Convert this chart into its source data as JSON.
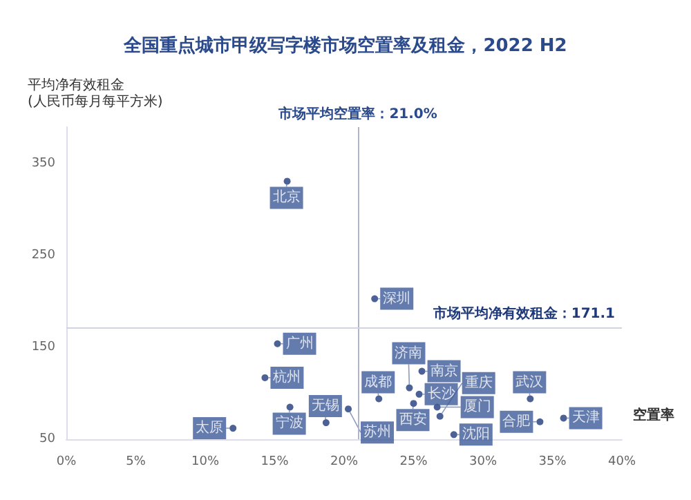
{
  "chart_data": {
    "type": "scatter",
    "title": "全国重点城市甲级写字楼市场空置率及租金，2022 H2",
    "xlabel": "空置率",
    "ylabel": "平均净有效租金\n(人民币每月每平方米)",
    "xlim": [
      0,
      40
    ],
    "xticks": [
      {
        "value": 0,
        "label": "0%"
      },
      {
        "value": 5,
        "label": "5%"
      },
      {
        "value": 10,
        "label": "10%"
      },
      {
        "value": 15,
        "label": "15%"
      },
      {
        "value": 20,
        "label": "20%"
      },
      {
        "value": 25,
        "label": "25%"
      },
      {
        "value": 30,
        "label": "30%"
      },
      {
        "value": 35,
        "label": "35%"
      },
      {
        "value": 40,
        "label": "40%"
      }
    ],
    "ylim": [
      50,
      390
    ],
    "yticks": [
      50,
      150,
      250,
      350
    ],
    "grid": false,
    "legend": false,
    "marker": "circle",
    "series": [
      {
        "name": "北京",
        "color": "#1f3a7a",
        "x": [
          15.9
        ],
        "values": [
          331
        ]
      },
      {
        "name": "深圳",
        "color": "#1f3a7a",
        "x": [
          22.2
        ],
        "values": [
          203
        ]
      },
      {
        "name": "广州",
        "color": "#1f3a7a",
        "x": [
          15.2
        ],
        "values": [
          154
        ]
      },
      {
        "name": "杭州",
        "color": "#1f3a7a",
        "x": [
          14.3
        ],
        "values": [
          117
        ]
      },
      {
        "name": "宁波",
        "color": "#1f3a7a",
        "x": [
          16.1
        ],
        "values": [
          85
        ]
      },
      {
        "name": "太原",
        "color": "#1f3a7a",
        "x": [
          12.0
        ],
        "values": [
          62
        ]
      },
      {
        "name": "无锡",
        "color": "#1f3a7a",
        "x": [
          18.7
        ],
        "values": [
          68
        ]
      },
      {
        "name": "苏州",
        "color": "#1f3a7a",
        "x": [
          20.3
        ],
        "values": [
          83
        ]
      },
      {
        "name": "成都",
        "color": "#1f3a7a",
        "x": [
          22.5
        ],
        "values": [
          94
        ]
      },
      {
        "name": "济南",
        "color": "#1f3a7a",
        "x": [
          24.7
        ],
        "values": [
          106
        ]
      },
      {
        "name": "南京",
        "color": "#1f3a7a",
        "x": [
          25.6
        ],
        "values": [
          124
        ]
      },
      {
        "name": "长沙",
        "color": "#1f3a7a",
        "x": [
          25.4
        ],
        "values": [
          99
        ]
      },
      {
        "name": "西安",
        "color": "#1f3a7a",
        "x": [
          25.0
        ],
        "values": [
          89
        ]
      },
      {
        "name": "厦门",
        "color": "#1f3a7a",
        "x": [
          26.7
        ],
        "values": [
          85
        ]
      },
      {
        "name": "重庆",
        "color": "#1f3a7a",
        "x": [
          26.9
        ],
        "values": [
          75
        ]
      },
      {
        "name": "沈阳",
        "color": "#1f3a7a",
        "x": [
          27.9
        ],
        "values": [
          55
        ]
      },
      {
        "name": "武汉",
        "color": "#1f3a7a",
        "x": [
          33.4
        ],
        "values": [
          94
        ]
      },
      {
        "name": "合肥",
        "color": "#1f3a7a",
        "x": [
          34.1
        ],
        "values": [
          69
        ]
      },
      {
        "name": "天津",
        "color": "#1f3a7a",
        "x": [
          35.8
        ],
        "values": [
          73
        ]
      }
    ],
    "ref_lines": [
      {
        "axis": "x",
        "value": 21.0,
        "label": "市场平均空置率：21.0%",
        "color": "#b0b4c8",
        "line_style": "solid"
      },
      {
        "axis": "y",
        "value": 171.1,
        "label": "市场平均净有效租金：171.1",
        "color": "#d0d4e0",
        "line_style": "solid"
      }
    ]
  }
}
